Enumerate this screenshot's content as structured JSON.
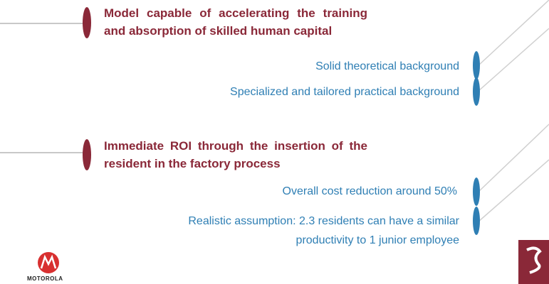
{
  "points": [
    {
      "title": "Model capable of accelerating the training and absorption of skilled human capital",
      "details": [
        "Solid theoretical background",
        "Specialized and tailored practical background"
      ]
    },
    {
      "title": "Immediate ROI through the insertion of the resident in the factory process",
      "details": [
        "Overall cost reduction around 50%",
        "Realistic assumption: 2.3 residents can have a similar productivity to 1 junior employee"
      ]
    }
  ],
  "logo": "MOTOROLA"
}
